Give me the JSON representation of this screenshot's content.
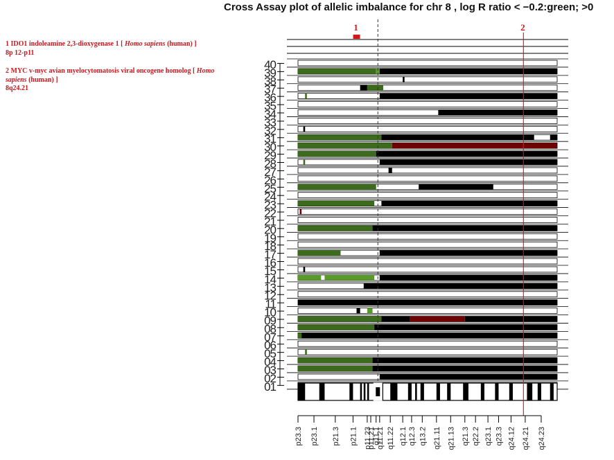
{
  "legend": {
    "entries": [
      {
        "num": "1",
        "pre": "IDO1 indoleamine 2,3-dioxygenase 1 [",
        "species": "Homo sapiens",
        "post": "(human) ]",
        "location": "8p 12-p11"
      },
      {
        "num": "2",
        "pre": "MYC v-myc avian myelocytomatosis viral oncogene homolog [",
        "species": "Homo sapiens",
        "post": "(human) ]",
        "location": "8q24.21"
      }
    ]
  },
  "chart_data": {
    "type": "heatmap",
    "title": "Cross Assay plot of allelic imbalance for chr 8 , log R ratio < −0.2:green; >0",
    "colors": {
      "loss": "#3c6b1e",
      "loss_light": "#5a9a2c",
      "gain": "#000000",
      "amp": "#6e0000",
      "gene_marker": "#d01818"
    },
    "x_range": [
      0,
      146
    ],
    "centromere": 45,
    "y_labels": [
      "40",
      "39",
      "38",
      "37",
      "36",
      "35",
      "34",
      "33",
      "32",
      "31",
      "30",
      "29",
      "28",
      "27",
      "26",
      "25",
      "24",
      "23",
      "22",
      "21",
      "20",
      "19",
      "18",
      "17",
      "16",
      "15",
      "14",
      "13",
      "12",
      "11",
      "10",
      "09",
      "08",
      "07",
      "06",
      "05",
      "04",
      "03",
      "02",
      "01"
    ],
    "cytoband_labels": [
      "p23.3",
      "p23.1",
      "p21.3",
      "p21.1",
      "p11.23",
      "p11.21",
      "q11.1",
      "q11.21",
      "q11.22",
      "q12.1",
      "q12.3",
      "q13.2",
      "q21.11",
      "q21.13",
      "q21.3",
      "q22.2",
      "q23.1",
      "q23.3",
      "q24.12",
      "q24.21",
      "q24.23"
    ],
    "cytoband_ticks": [
      0,
      9,
      21,
      31,
      39,
      41,
      44,
      46,
      52,
      59,
      64,
      70,
      78,
      86,
      94,
      100,
      107,
      113,
      120,
      128,
      137
    ],
    "genes": [
      {
        "label": "1",
        "position": 33
      },
      {
        "label": "2",
        "position": 127
      }
    ],
    "samples": [
      {
        "id": "40",
        "segments": []
      },
      {
        "id": "39",
        "segments": [
          [
            0,
            44,
            "loss"
          ],
          [
            44,
            46,
            "loss_light"
          ],
          [
            46,
            146,
            "gain"
          ]
        ]
      },
      {
        "id": "38",
        "segments": [
          [
            59,
            60,
            "gain"
          ]
        ]
      },
      {
        "id": "37",
        "segments": [
          [
            35,
            39,
            "gain"
          ],
          [
            39,
            48,
            "loss"
          ]
        ]
      },
      {
        "id": "36",
        "segments": [
          [
            4,
            5,
            "loss"
          ],
          [
            46,
            146,
            "gain"
          ]
        ]
      },
      {
        "id": "35",
        "segments": []
      },
      {
        "id": "34",
        "segments": [
          [
            79,
            146,
            "gain"
          ]
        ]
      },
      {
        "id": "33",
        "segments": []
      },
      {
        "id": "32",
        "segments": [
          [
            3,
            4,
            "gain"
          ]
        ]
      },
      {
        "id": "31",
        "segments": [
          [
            0,
            47,
            "loss"
          ],
          [
            47,
            133,
            "gain"
          ],
          [
            142,
            146,
            "gain"
          ]
        ]
      },
      {
        "id": "30",
        "segments": [
          [
            0,
            53,
            "loss"
          ],
          [
            53,
            146,
            "amp"
          ]
        ]
      },
      {
        "id": "29",
        "segments": [
          [
            0,
            44,
            "loss"
          ],
          [
            44,
            146,
            "gain"
          ]
        ]
      },
      {
        "id": "28",
        "segments": [
          [
            3,
            4,
            "loss"
          ],
          [
            46,
            146,
            "gain"
          ]
        ]
      },
      {
        "id": "27",
        "segments": [
          [
            51,
            53,
            "gain"
          ]
        ]
      },
      {
        "id": "26",
        "segments": []
      },
      {
        "id": "25",
        "segments": [
          [
            0,
            44,
            "loss"
          ],
          [
            68,
            110,
            "gain"
          ]
        ]
      },
      {
        "id": "24",
        "segments": []
      },
      {
        "id": "23",
        "segments": [
          [
            0,
            43,
            "loss"
          ],
          [
            47,
            146,
            "gain"
          ]
        ]
      },
      {
        "id": "22",
        "segments": [
          [
            1,
            2,
            "amp"
          ]
        ]
      },
      {
        "id": "21",
        "segments": []
      },
      {
        "id": "20",
        "segments": [
          [
            0,
            42,
            "loss"
          ],
          [
            42,
            146,
            "gain"
          ]
        ]
      },
      {
        "id": "19",
        "segments": []
      },
      {
        "id": "18",
        "segments": []
      },
      {
        "id": "17",
        "segments": [
          [
            0,
            24,
            "loss"
          ],
          [
            46,
            146,
            "gain"
          ]
        ]
      },
      {
        "id": "16",
        "segments": []
      },
      {
        "id": "15",
        "segments": [
          [
            3,
            4,
            "gain"
          ]
        ]
      },
      {
        "id": "14",
        "segments": [
          [
            0,
            13,
            "loss_light"
          ],
          [
            15,
            43,
            "loss_light"
          ],
          [
            46,
            146,
            "gain"
          ]
        ]
      },
      {
        "id": "13",
        "segments": [
          [
            37,
            146,
            "gain"
          ]
        ]
      },
      {
        "id": "12",
        "segments": []
      },
      {
        "id": "11",
        "segments": [
          [
            0,
            146,
            "gain"
          ]
        ]
      },
      {
        "id": "10",
        "segments": [
          [
            33,
            35,
            "gain"
          ],
          [
            39,
            42,
            "loss_light"
          ]
        ]
      },
      {
        "id": "09",
        "segments": [
          [
            0,
            47,
            "loss"
          ],
          [
            47,
            63,
            "gain"
          ],
          [
            63,
            94,
            "amp"
          ],
          [
            94,
            146,
            "gain"
          ]
        ]
      },
      {
        "id": "08",
        "segments": [
          [
            0,
            43,
            "loss"
          ],
          [
            43,
            146,
            "gain"
          ]
        ]
      },
      {
        "id": "07",
        "segments": [
          [
            0,
            2,
            "loss"
          ],
          [
            2,
            146,
            "gain"
          ]
        ]
      },
      {
        "id": "06",
        "segments": []
      },
      {
        "id": "05",
        "segments": [
          [
            4,
            5,
            "loss"
          ]
        ]
      },
      {
        "id": "04",
        "segments": [
          [
            0,
            42,
            "loss"
          ],
          [
            42,
            146,
            "gain"
          ]
        ]
      },
      {
        "id": "03",
        "segments": [
          [
            0,
            42,
            "loss"
          ],
          [
            42,
            146,
            "gain"
          ]
        ]
      },
      {
        "id": "02",
        "segments": [
          [
            46,
            146,
            "gain"
          ]
        ]
      },
      {
        "id": "01",
        "segments": []
      }
    ],
    "ideogram": [
      [
        0,
        4
      ],
      [
        12,
        15
      ],
      [
        29,
        31
      ],
      [
        35,
        36
      ],
      [
        37,
        38
      ],
      [
        39,
        40
      ],
      [
        44,
        48
      ],
      [
        52,
        56
      ],
      [
        62,
        64
      ],
      [
        66,
        67
      ],
      [
        69,
        71
      ],
      [
        78,
        80
      ],
      [
        84,
        86
      ],
      [
        93,
        96
      ],
      [
        103,
        105
      ],
      [
        111,
        113
      ],
      [
        119,
        121
      ],
      [
        129,
        132
      ],
      [
        135,
        137
      ],
      [
        142,
        144
      ]
    ]
  }
}
